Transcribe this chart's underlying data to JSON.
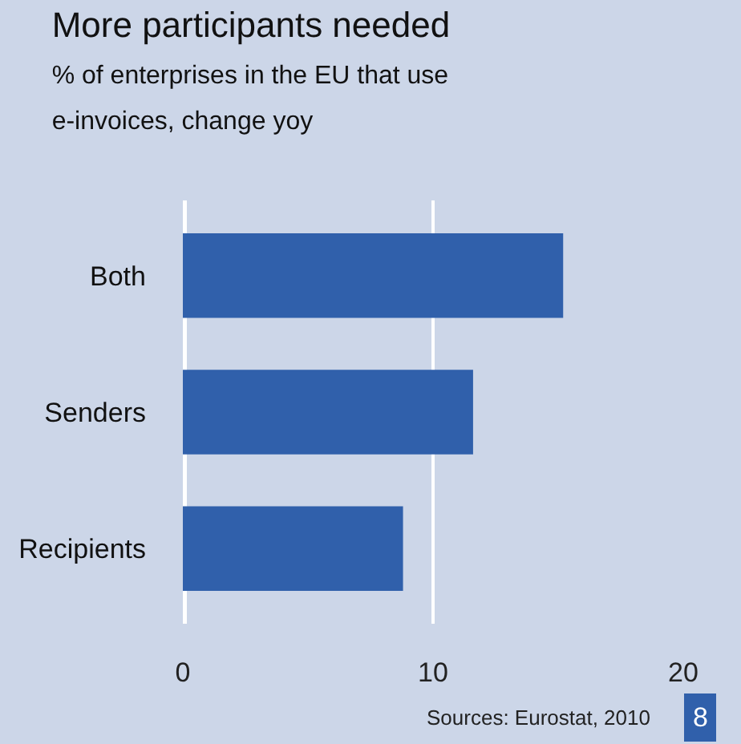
{
  "chart_data": {
    "type": "bar",
    "orientation": "horizontal",
    "title": "More participants needed",
    "subtitle": "% of enterprises in the EU that use\ne-invoices, change yoy",
    "categories": [
      "Both",
      "Senders",
      "Recipients"
    ],
    "values": [
      15.2,
      11.6,
      8.8
    ],
    "color": "#3060ab",
    "xlim": [
      0,
      20
    ],
    "xticks": [
      0,
      10,
      20
    ],
    "grid": "x",
    "annotations": [
      "Sources: Eurostat, 2010",
      "8"
    ]
  }
}
